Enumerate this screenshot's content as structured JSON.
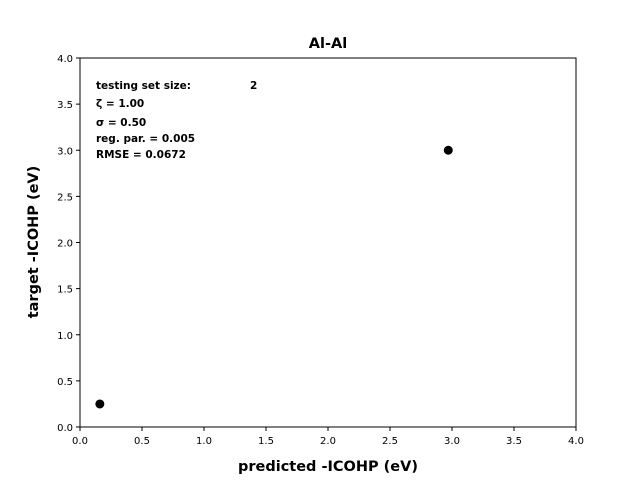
{
  "chart_data": {
    "type": "scatter",
    "title": "Al-Al",
    "xlabel": "predicted -ICOHP (eV)",
    "ylabel": "target -ICOHP (eV)",
    "xlim": [
      0.0,
      4.0
    ],
    "ylim": [
      0.0,
      4.0
    ],
    "xticks": [
      "0.0",
      "0.5",
      "1.0",
      "1.5",
      "2.0",
      "2.5",
      "3.0",
      "3.5",
      "4.0"
    ],
    "yticks": [
      "0.0",
      "0.5",
      "1.0",
      "1.5",
      "2.0",
      "2.5",
      "3.0",
      "3.5",
      "4.0"
    ],
    "grid": false,
    "points": [
      {
        "x": 0.16,
        "y": 0.25
      },
      {
        "x": 2.97,
        "y": 3.0
      }
    ],
    "marker_color": "#000000",
    "annotations": {
      "testing_set_label": "testing set size:",
      "testing_set_value": "2",
      "zeta": "ζ = 1.00",
      "sigma": "σ = 0.50",
      "reg_par": "reg. par. = 0.005",
      "rmse": "RMSE = 0.0672"
    }
  }
}
